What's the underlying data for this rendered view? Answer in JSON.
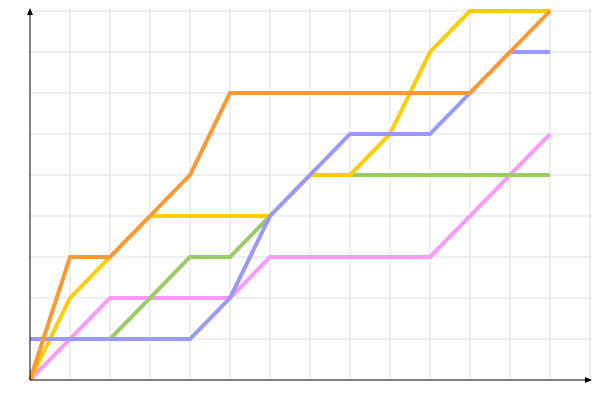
{
  "chart_data": {
    "type": "line",
    "title": "",
    "xlabel": "",
    "ylabel": "",
    "x": [
      0,
      1,
      2,
      3,
      4,
      5,
      6,
      7,
      8,
      9,
      10,
      11,
      12,
      13
    ],
    "xlim": [
      0,
      13.97
    ],
    "ylim": [
      0,
      9.1
    ],
    "grid": true,
    "legend": "none",
    "series": [
      {
        "color": "#ff99ff",
        "values": [
          0,
          1,
          2,
          2,
          2,
          2,
          3,
          3,
          3,
          3,
          3,
          4,
          5,
          6
        ]
      },
      {
        "color": "#99cc66",
        "values": [
          1,
          1,
          1,
          2,
          3,
          3,
          4,
          5,
          5,
          5,
          5,
          5,
          5,
          5
        ]
      },
      {
        "color": "#ffcc00",
        "values": [
          0,
          2,
          3,
          4,
          4,
          4,
          4,
          5,
          5,
          6,
          8,
          9,
          9,
          9
        ]
      },
      {
        "color": "#9999ff",
        "values": [
          1,
          1,
          1,
          1,
          1,
          2,
          4,
          5,
          6,
          6,
          6,
          7,
          8,
          8
        ]
      },
      {
        "color": "#ff9933",
        "values": [
          0,
          3,
          3,
          4,
          5,
          7,
          7,
          7,
          7,
          7,
          7,
          7,
          8,
          9
        ]
      }
    ]
  }
}
